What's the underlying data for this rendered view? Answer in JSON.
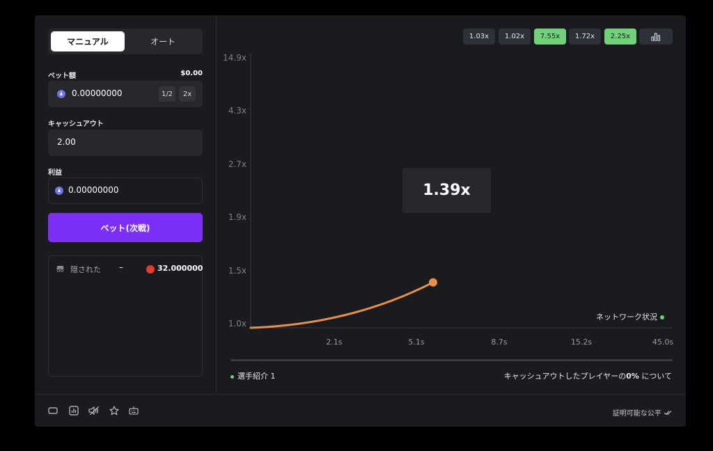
{
  "mode_tabs": {
    "manual": "マニュアル",
    "auto": "オート"
  },
  "bet": {
    "label": "ベット額",
    "balance": "$0.00",
    "value": "0.00000000",
    "half": "1/2",
    "double": "2x"
  },
  "cashout": {
    "label": "キャッシュアウト",
    "value": "2.00"
  },
  "profit": {
    "label": "利益",
    "value": "0.00000000"
  },
  "bet_button": "ベット(次戦)",
  "players": {
    "hidden_label": "隠された",
    "dash": "–",
    "amount": "32.000000"
  },
  "history": [
    "1.03x",
    "1.02x",
    "7.55x",
    "1.72x",
    "2.25x"
  ],
  "history_green": [
    false,
    false,
    true,
    false,
    true
  ],
  "chart_data": {
    "type": "line",
    "y_ticks": [
      "14.9x",
      "4.3x",
      "2.7x",
      "1.9x",
      "1.5x",
      "1.0x"
    ],
    "x_ticks": [
      "2.1s",
      "5.1s",
      "8.7s",
      "15.2s",
      "45.0s"
    ],
    "current_multiplier": "1.39x",
    "series": [
      {
        "values": [
          1.0,
          1.39
        ]
      }
    ],
    "line_color": "#e8904a"
  },
  "network_status": "ネットワーク状況",
  "player_intro": "選手紹介 1",
  "cashout_info_prefix": "キャッシュアウトしたプレイヤーの",
  "cashout_info_pct": "0%",
  "cashout_info_suffix": " について",
  "provably_fair": "証明可能な公平"
}
